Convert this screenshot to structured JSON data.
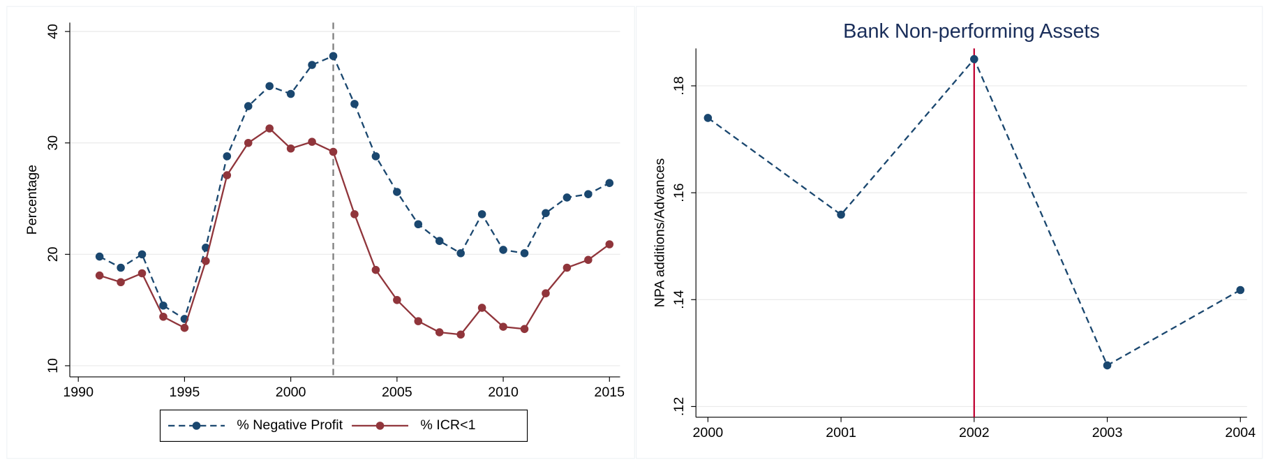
{
  "chart_data": [
    {
      "type": "line",
      "y_label": "Percentage",
      "x": [
        1991,
        1992,
        1993,
        1994,
        1995,
        1996,
        1997,
        1998,
        1999,
        2000,
        2001,
        2002,
        2003,
        2004,
        2005,
        2006,
        2007,
        2008,
        2009,
        2010,
        2011,
        2012,
        2013,
        2014,
        2015
      ],
      "series": [
        {
          "name": "% Negative Profit",
          "color": "#1a476f",
          "line_style": "dashed",
          "values": [
            19.8,
            18.8,
            20.0,
            15.4,
            14.2,
            20.6,
            28.8,
            33.3,
            35.1,
            34.4,
            37.0,
            37.8,
            33.5,
            28.8,
            25.6,
            22.7,
            21.2,
            20.1,
            23.6,
            20.4,
            20.1,
            23.7,
            25.1,
            25.4,
            26.4
          ]
        },
        {
          "name": "% ICR<1",
          "color": "#90353b",
          "line_style": "solid",
          "values": [
            18.1,
            17.5,
            18.3,
            14.4,
            13.4,
            19.4,
            27.1,
            30.0,
            31.3,
            29.5,
            30.1,
            29.2,
            23.6,
            18.6,
            15.9,
            14.0,
            13.0,
            12.8,
            15.2,
            13.5,
            13.3,
            16.5,
            18.8,
            19.5,
            20.9
          ]
        }
      ],
      "xlim": [
        1989.6,
        2015.5
      ],
      "xticks": [
        1990,
        1995,
        2000,
        2005,
        2010,
        2015
      ],
      "ylim": [
        9,
        40.8
      ],
      "yticks": [
        10,
        20,
        30,
        40
      ],
      "grid": true,
      "vline": 2002,
      "vline_color": "#7f7f7f",
      "vline_style": "dashed",
      "legend": "bottom"
    },
    {
      "type": "line",
      "title": "Bank Non-performing Assets",
      "y_label": "NPA additions/Advances",
      "x": [
        2000,
        2001,
        2002,
        2003,
        2004
      ],
      "series": [
        {
          "name": null,
          "color": "#1a476f",
          "line_style": "dashed",
          "values": [
            0.174,
            0.1559,
            0.185,
            0.1277,
            0.1418
          ]
        }
      ],
      "xlim": [
        1999.91,
        2004.05
      ],
      "xticks": [
        2000,
        2001,
        2002,
        2003,
        2004
      ],
      "ylim": [
        0.118,
        0.187
      ],
      "yticks": [
        {
          "value": 0.12,
          "label": ".12"
        },
        {
          "value": 0.14,
          "label": ".14"
        },
        {
          "value": 0.16,
          "label": ".16"
        },
        {
          "value": 0.18,
          "label": ".18"
        }
      ],
      "grid": true,
      "vline": 2002,
      "vline_color": "#c10534",
      "vline_style": "solid"
    }
  ]
}
